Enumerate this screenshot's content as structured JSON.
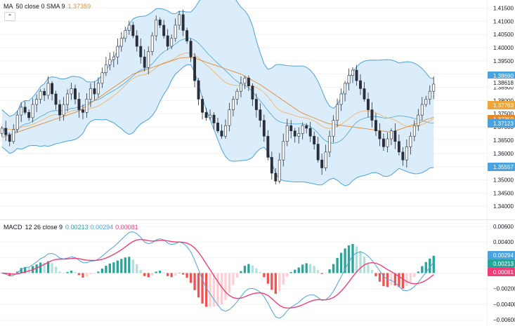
{
  "colors": {
    "up": "#26a69a",
    "down": "#ef5350",
    "bb": "#4aa3df",
    "bbFill": "#cfe7f8",
    "sma": "#e58a2b",
    "macd": "#2962ff",
    "signal": "#f23d7b",
    "histUp": "#26a69a",
    "histUpLight": "#b2dfdb",
    "histDown": "#ef5350",
    "histDownLight": "#ffcdd2"
  },
  "legend_price": {
    "name": "MA",
    "params": "50 close 0 SMA 9",
    "value": "1.37359"
  },
  "legend_macd": {
    "name": "MACD",
    "params": "12 26 close 9",
    "hist": "0.00213",
    "macd": "0.00294",
    "signal": "0.00081"
  },
  "chart_data": [
    {
      "type": "candlestick",
      "ylim": [
        1.335,
        1.4175
      ],
      "yticks": [
        1.415,
        1.41,
        1.405,
        1.4,
        1.395,
        1.39,
        1.385,
        1.38,
        1.375,
        1.37,
        1.365,
        1.36,
        1.355,
        1.35,
        1.345,
        1.34
      ],
      "ytick_labels": [
        "1.41500",
        "1.41000",
        "1.40500",
        "1.40000",
        "1.39500",
        "1.39000",
        "1.38500",
        "1.38000",
        "1.37500",
        "1.37000",
        "1.36500",
        "1.36000",
        "1.35500",
        "1.35000",
        "1.34500",
        "1.34000"
      ],
      "close": [
        1.3695,
        1.367,
        1.3645,
        1.369,
        1.3745,
        1.3775,
        1.3755,
        1.3735,
        1.3785,
        1.3805,
        1.3835,
        1.382,
        1.3865,
        1.3825,
        1.3785,
        1.3745,
        1.3785,
        1.3825,
        1.3845,
        1.3805,
        1.3765,
        1.3755,
        1.3805,
        1.3845,
        1.3825,
        1.3865,
        1.3905,
        1.3935,
        1.3955,
        1.3965,
        1.4005,
        1.4035,
        1.4065,
        1.4085,
        1.4045,
        1.4005,
        1.3965,
        1.3925,
        1.3985,
        1.4045,
        1.4105,
        1.4085,
        1.4045,
        1.4005,
        1.4035,
        1.4085,
        1.4125,
        1.4065,
        1.4025,
        1.3965,
        1.3875,
        1.3805,
        1.3755,
        1.3735,
        1.3745,
        1.3715,
        1.3685,
        1.3665,
        1.3705,
        1.3765,
        1.3805,
        1.3835,
        1.3865,
        1.3885,
        1.3855,
        1.3805,
        1.3765,
        1.3725,
        1.3665,
        1.3585,
        1.3525,
        1.3495,
        1.3575,
        1.3645,
        1.3705,
        1.3685,
        1.3665,
        1.3675,
        1.3705,
        1.3695,
        1.3665,
        1.3635,
        1.3575,
        1.3545,
        1.3605,
        1.3665,
        1.3725,
        1.3785,
        1.3825,
        1.3865,
        1.3895,
        1.3915,
        1.3875,
        1.3845,
        1.3805,
        1.3765,
        1.3725,
        1.3685,
        1.3655,
        1.3625,
        1.3655,
        1.3685,
        1.3645,
        1.3605,
        1.3575,
        1.3625,
        1.3665,
        1.3705,
        1.3745,
        1.3785,
        1.3805,
        1.3835,
        1.3862
      ],
      "sma_close": [
        1.366,
        1.3665,
        1.367,
        1.3675,
        1.368,
        1.3685,
        1.369,
        1.3695,
        1.37,
        1.3705,
        1.371,
        1.3715,
        1.372,
        1.3725,
        1.373,
        1.3735,
        1.374,
        1.3745,
        1.375,
        1.3755,
        1.376,
        1.377,
        1.378,
        1.379,
        1.38,
        1.381,
        1.382,
        1.383,
        1.384,
        1.385,
        1.386,
        1.387,
        1.388,
        1.389,
        1.39,
        1.3905,
        1.391,
        1.3915,
        1.392,
        1.3925,
        1.393,
        1.3935,
        1.394,
        1.3945,
        1.395,
        1.3955,
        1.396,
        1.3962,
        1.3963,
        1.3963,
        1.396,
        1.3955,
        1.395,
        1.3945,
        1.394,
        1.3935,
        1.393,
        1.3925,
        1.392,
        1.3915,
        1.391,
        1.3905,
        1.39,
        1.3892,
        1.3884,
        1.3876,
        1.3868,
        1.386,
        1.385,
        1.384,
        1.383,
        1.382,
        1.381,
        1.38,
        1.379,
        1.378,
        1.377,
        1.376,
        1.3752,
        1.3746,
        1.374,
        1.3734,
        1.3728,
        1.3722,
        1.3716,
        1.3712,
        1.371,
        1.3708,
        1.3706,
        1.3704,
        1.3702,
        1.37,
        1.3698,
        1.3696,
        1.3694,
        1.3692,
        1.369,
        1.3688,
        1.3686,
        1.3684,
        1.3682,
        1.368,
        1.3685,
        1.369,
        1.3695,
        1.37,
        1.3705,
        1.371,
        1.3715,
        1.372,
        1.3728,
        1.3732,
        1.3736
      ],
      "series_labels": [
        {
          "name": "bb_upper",
          "value": "1.38690",
          "color": "#4aa3df"
        },
        {
          "name": "last_close",
          "value": "1.38618",
          "color": "#ffffff"
        },
        {
          "name": "ema",
          "value": "1.37763",
          "color": "#f0a53a"
        },
        {
          "name": "sma",
          "value": "1.37359",
          "color": "#e58a2b"
        },
        {
          "name": "bb_basis",
          "value": "1.37123",
          "color": "#4aa3df"
        },
        {
          "name": "bb_lower",
          "value": "1.35557",
          "color": "#4aa3df"
        }
      ]
    },
    {
      "type": "macd",
      "ylim": [
        -0.0068,
        0.0068
      ],
      "yticks": [
        0.006,
        0.004,
        0.002,
        0.0,
        -0.002,
        -0.004,
        -0.006
      ],
      "ytick_labels": [
        "0.00600",
        "0.00400",
        "0.00200",
        "0.00000",
        "−0.00200",
        "−0.00400",
        "−0.00600"
      ],
      "series_labels": [
        {
          "name": "macd",
          "value": "0.00294",
          "color": "#4aa3df"
        },
        {
          "name": "hist",
          "value": "0.00213",
          "color": "#26a69a"
        },
        {
          "name": "signal",
          "value": "0.00081",
          "color": "#f23d7b"
        }
      ]
    }
  ]
}
